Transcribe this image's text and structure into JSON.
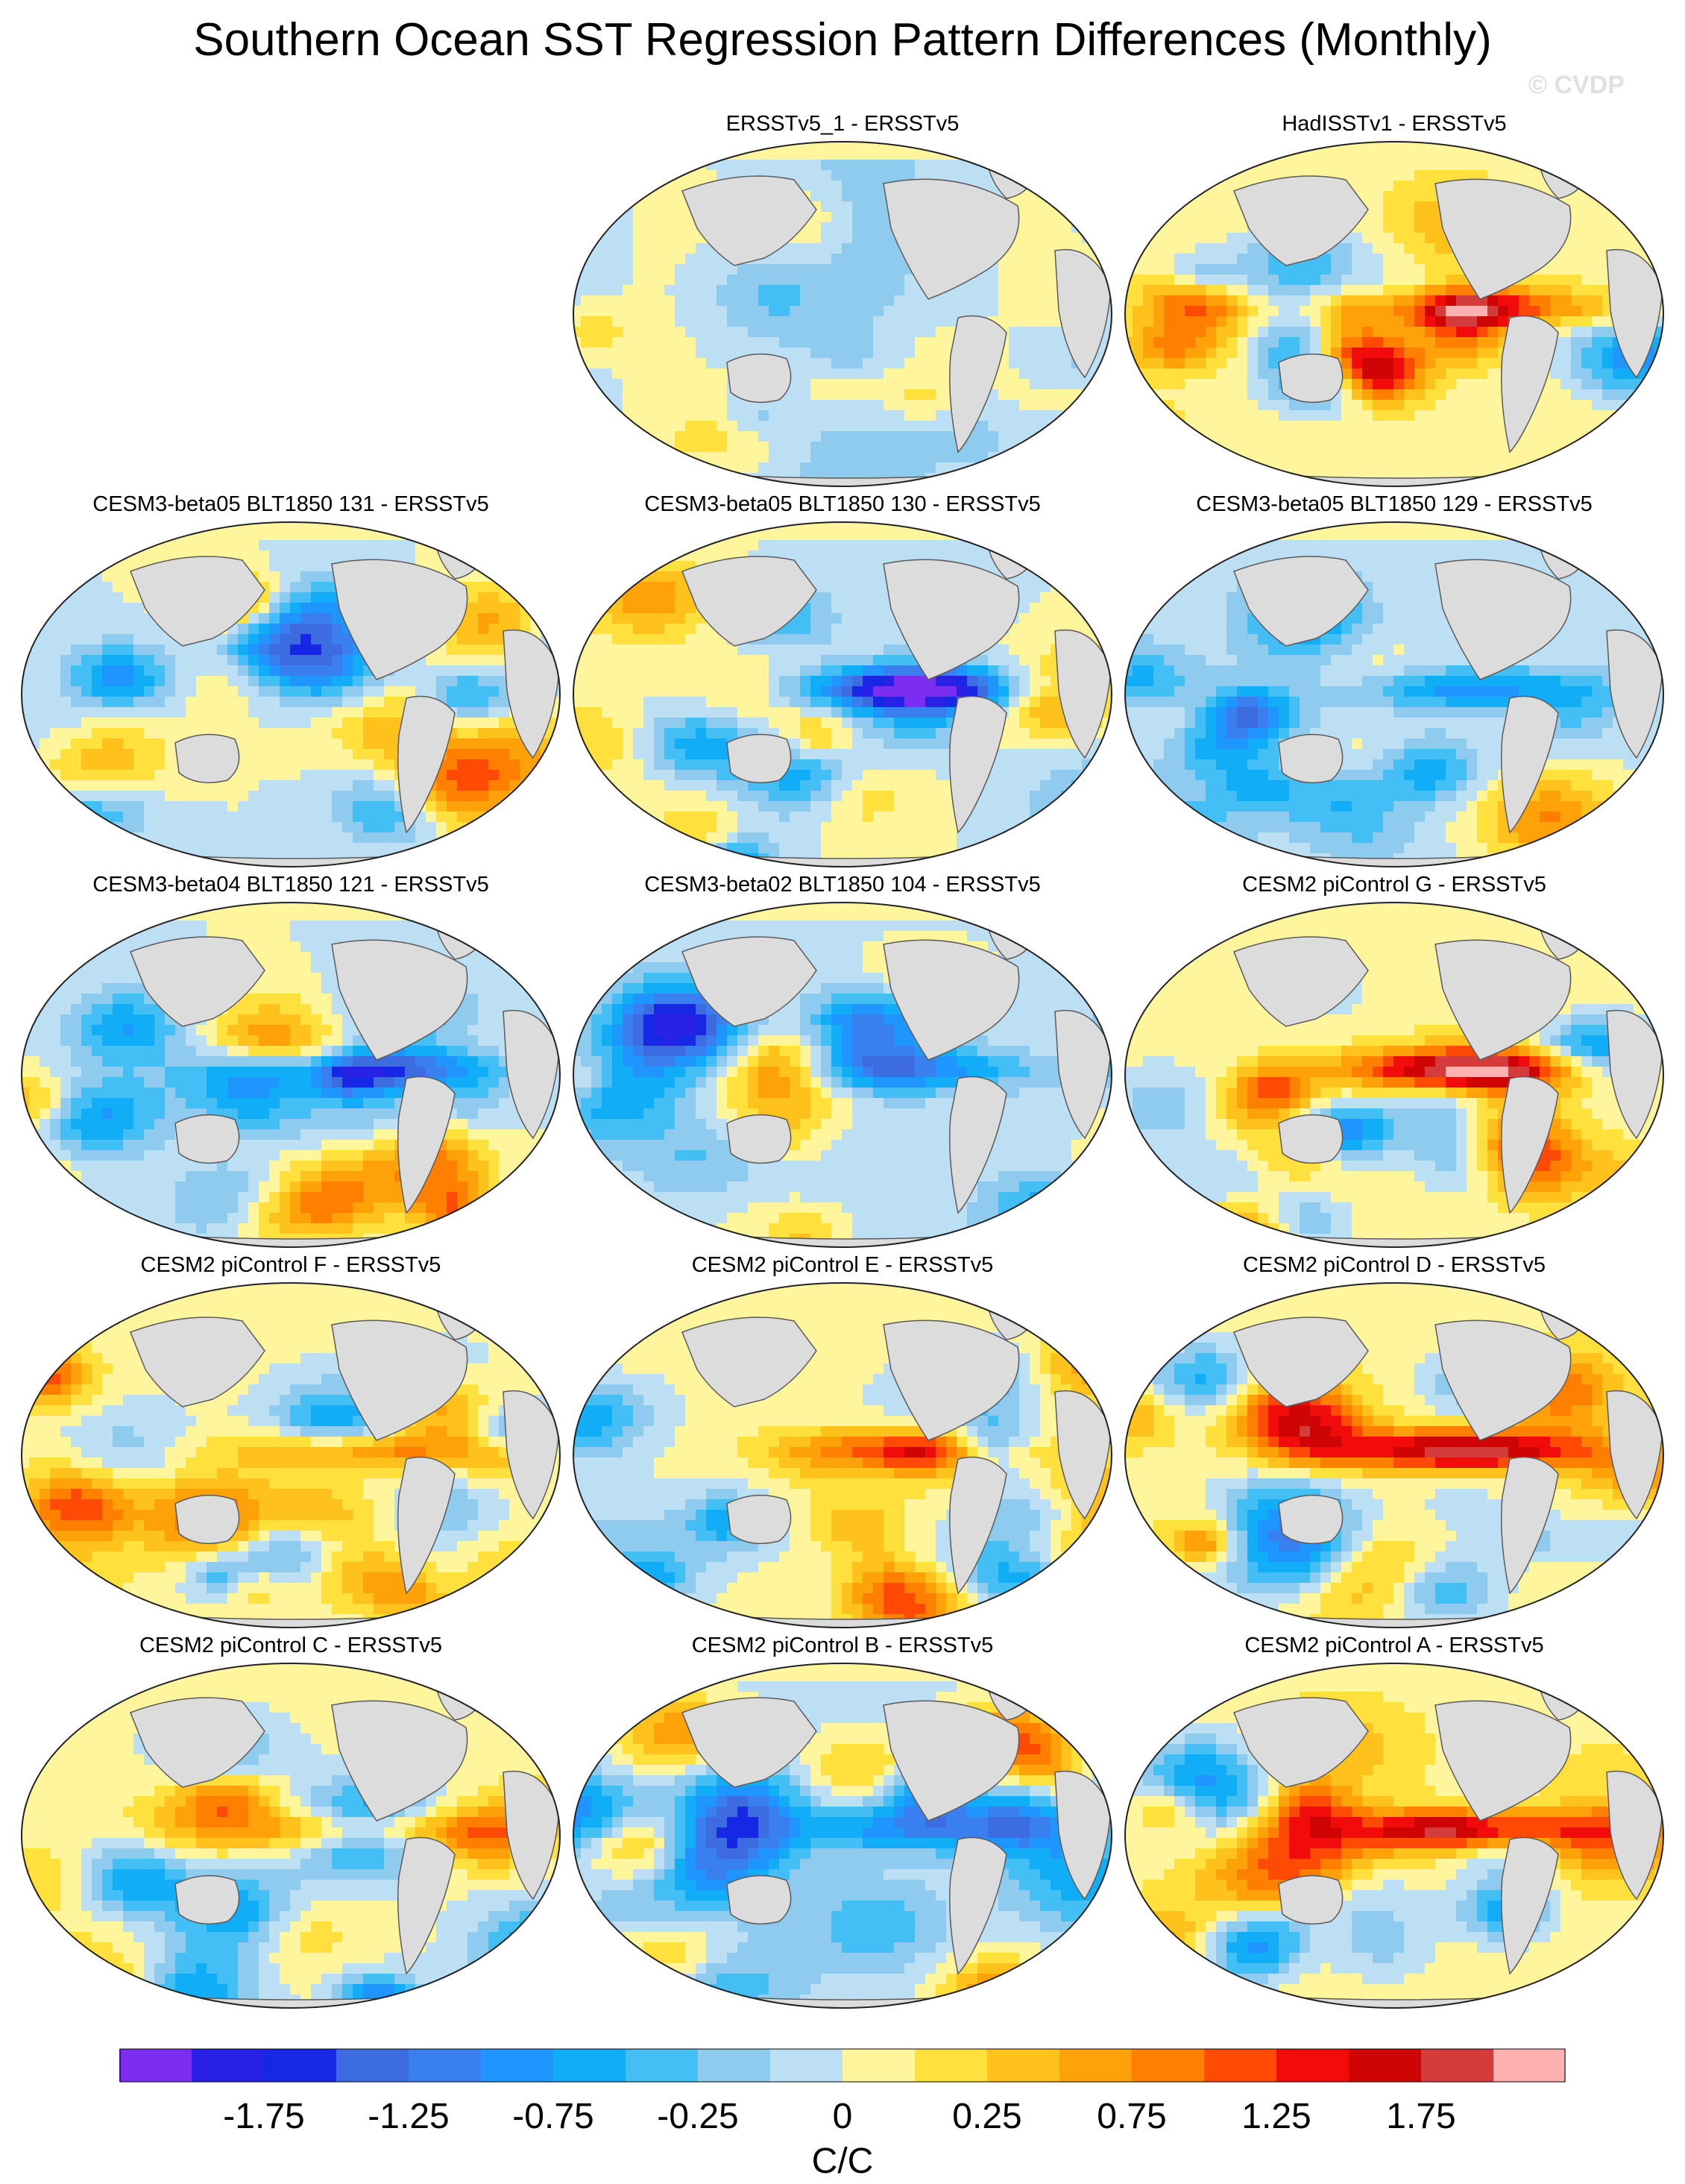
{
  "title": "Southern Ocean SST Regression Pattern Differences (Monthly)",
  "credit": "© CVDP",
  "colors": {
    "land": "#dcdcdc",
    "coast": "#5a5a5a",
    "scale": [
      "#7b2ef0",
      "#2a21e6",
      "#1628e6",
      "#3d6be0",
      "#3a7ff0",
      "#1f95ff",
      "#11adf7",
      "#43bff5",
      "#8ecbef",
      "#bcdff4",
      "#fff59c",
      "#ffe03c",
      "#ffc21c",
      "#ffa20a",
      "#ff8000",
      "#ff4a06",
      "#f20b0b",
      "#cf0404",
      "#d43b3b",
      "#ffb0b0"
    ]
  },
  "panels": [
    {
      "title": "ERSSTv5_1 - ERSSTv5",
      "tone": "weak"
    },
    {
      "title": "HadISSTv1 - ERSSTv5",
      "tone": "warmEq"
    },
    {
      "title": "CESM3-beta05 BLT1850 131 - ERSSTv5",
      "tone": "mixed"
    },
    {
      "title": "CESM3-beta05 BLT1850 130 - ERSSTv5",
      "tone": "coolEq"
    },
    {
      "title": "CESM3-beta05 BLT1850 129 - ERSSTv5",
      "tone": "coolMix"
    },
    {
      "title": "CESM3-beta04 BLT1850 121 - ERSSTv5",
      "tone": "coolEq"
    },
    {
      "title": "CESM3-beta02 BLT1850 104 - ERSSTv5",
      "tone": "coolMix"
    },
    {
      "title": "CESM2 piControl G - ERSSTv5",
      "tone": "warmEq"
    },
    {
      "title": "CESM2 piControl F - ERSSTv5",
      "tone": "warmMix"
    },
    {
      "title": "CESM2 piControl E - ERSSTv5",
      "tone": "warmMix"
    },
    {
      "title": "CESM2 piControl D - ERSSTv5",
      "tone": "warmEq"
    },
    {
      "title": "CESM2 piControl C - ERSSTv5",
      "tone": "warmMix"
    },
    {
      "title": "CESM2 piControl B - ERSSTv5",
      "tone": "coolMix"
    },
    {
      "title": "CESM2 piControl A - ERSSTv5",
      "tone": "warmEq"
    }
  ],
  "colorbar": {
    "labels": [
      "-1.75",
      "-1.25",
      "-0.75",
      "-0.25",
      "0",
      "0.25",
      "0.75",
      "1.25",
      "1.75"
    ],
    "units": "C/C"
  }
}
